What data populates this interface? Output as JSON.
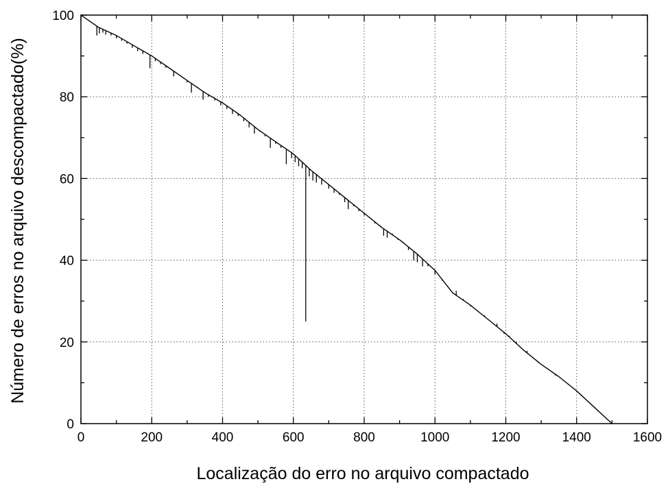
{
  "chart_data": {
    "type": "line",
    "title": "",
    "xlabel": "Localização do erro no arquivo compactado",
    "ylabel": "Número de erros no arquivo descompactado(%)",
    "xlim": [
      0,
      1600
    ],
    "ylim": [
      0,
      100
    ],
    "x_ticks": [
      0,
      200,
      400,
      600,
      800,
      1000,
      1200,
      1400,
      1600
    ],
    "y_ticks": [
      0,
      20,
      40,
      60,
      80,
      100
    ],
    "x_tick_labels": [
      "0",
      "200",
      "400",
      "600",
      "800",
      "1000",
      "1200",
      "1400",
      "1600"
    ],
    "y_tick_labels": [
      "0",
      "20",
      "40",
      "60",
      "80",
      "100"
    ],
    "grid": true,
    "line_color": "#000000",
    "series": [
      {
        "x": [
          0,
          50,
          100,
          150,
          200,
          250,
          300,
          350,
          400,
          450,
          500,
          550,
          600,
          650,
          700,
          750,
          800,
          850,
          900,
          950,
          1000,
          1050,
          1100,
          1150,
          1200,
          1250,
          1300,
          1350,
          1400,
          1450,
          1500
        ],
        "values": [
          100,
          97,
          95,
          92.5,
          90,
          87,
          84,
          81,
          78.5,
          75.5,
          72,
          69,
          66,
          62,
          58.5,
          55,
          51.5,
          48,
          45,
          41.5,
          37.5,
          32,
          29,
          25.5,
          22,
          18,
          14.5,
          11.5,
          8,
          4,
          0
        ]
      }
    ],
    "spikes": [
      {
        "x": 45,
        "low": 95
      },
      {
        "x": 52,
        "low": 95.5
      },
      {
        "x": 62,
        "low": 95.7
      },
      {
        "x": 70,
        "low": 95.2
      },
      {
        "x": 85,
        "low": 95
      },
      {
        "x": 100,
        "low": 94.3
      },
      {
        "x": 115,
        "low": 93.7
      },
      {
        "x": 130,
        "low": 93
      },
      {
        "x": 145,
        "low": 92
      },
      {
        "x": 160,
        "low": 91.2
      },
      {
        "x": 175,
        "low": 90.5
      },
      {
        "x": 195,
        "low": 87
      },
      {
        "x": 210,
        "low": 88.7
      },
      {
        "x": 225,
        "low": 88
      },
      {
        "x": 240,
        "low": 87.1
      },
      {
        "x": 262,
        "low": 85
      },
      {
        "x": 280,
        "low": 85.2
      },
      {
        "x": 300,
        "low": 83.5
      },
      {
        "x": 312,
        "low": 81
      },
      {
        "x": 330,
        "low": 82.4
      },
      {
        "x": 345,
        "low": 79.3
      },
      {
        "x": 360,
        "low": 80
      },
      {
        "x": 378,
        "low": 79.1
      },
      {
        "x": 395,
        "low": 77.9
      },
      {
        "x": 412,
        "low": 77
      },
      {
        "x": 428,
        "low": 75.8
      },
      {
        "x": 444,
        "low": 75.3
      },
      {
        "x": 460,
        "low": 74
      },
      {
        "x": 475,
        "low": 72.5
      },
      {
        "x": 490,
        "low": 71
      },
      {
        "x": 505,
        "low": 71.5
      },
      {
        "x": 520,
        "low": 70.3
      },
      {
        "x": 535,
        "low": 67.5
      },
      {
        "x": 550,
        "low": 68.5
      },
      {
        "x": 565,
        "low": 67.5
      },
      {
        "x": 580,
        "low": 63.5
      },
      {
        "x": 595,
        "low": 65
      },
      {
        "x": 605,
        "low": 64
      },
      {
        "x": 615,
        "low": 63
      },
      {
        "x": 625,
        "low": 62.5
      },
      {
        "x": 635,
        "low": 25
      },
      {
        "x": 645,
        "low": 60.5
      },
      {
        "x": 655,
        "low": 59.5
      },
      {
        "x": 665,
        "low": 59
      },
      {
        "x": 680,
        "low": 58.5
      },
      {
        "x": 700,
        "low": 57.5
      },
      {
        "x": 715,
        "low": 56.5
      },
      {
        "x": 730,
        "low": 56
      },
      {
        "x": 745,
        "low": 54.2
      },
      {
        "x": 755,
        "low": 52.5
      },
      {
        "x": 770,
        "low": 53.2
      },
      {
        "x": 785,
        "low": 52
      },
      {
        "x": 800,
        "low": 51
      },
      {
        "x": 815,
        "low": 50.5
      },
      {
        "x": 830,
        "low": 49
      },
      {
        "x": 845,
        "low": 48.5
      },
      {
        "x": 855,
        "low": 46
      },
      {
        "x": 865,
        "low": 45.5
      },
      {
        "x": 880,
        "low": 46.5
      },
      {
        "x": 895,
        "low": 45
      },
      {
        "x": 910,
        "low": 44.5
      },
      {
        "x": 925,
        "low": 42.5
      },
      {
        "x": 940,
        "low": 40
      },
      {
        "x": 950,
        "low": 39.5
      },
      {
        "x": 965,
        "low": 38.5
      },
      {
        "x": 980,
        "low": 38.5
      },
      {
        "x": 1000,
        "low": 36.5
      },
      {
        "x": 1020,
        "low": 35
      },
      {
        "x": 1040,
        "low": 33
      },
      {
        "x": 1060,
        "low": 32.5
      },
      {
        "x": 1080,
        "low": 30.5
      },
      {
        "x": 1100,
        "low": 28.7
      },
      {
        "x": 1120,
        "low": 27.7
      },
      {
        "x": 1140,
        "low": 26.5
      },
      {
        "x": 1160,
        "low": 24.8
      },
      {
        "x": 1175,
        "low": 24.5
      },
      {
        "x": 1195,
        "low": 22
      },
      {
        "x": 1210,
        "low": 21.5
      },
      {
        "x": 1230,
        "low": 20
      },
      {
        "x": 1260,
        "low": 17.8
      },
      {
        "x": 1290,
        "low": 15
      },
      {
        "x": 1310,
        "low": 13.8
      },
      {
        "x": 1340,
        "low": 11.8
      }
    ]
  }
}
